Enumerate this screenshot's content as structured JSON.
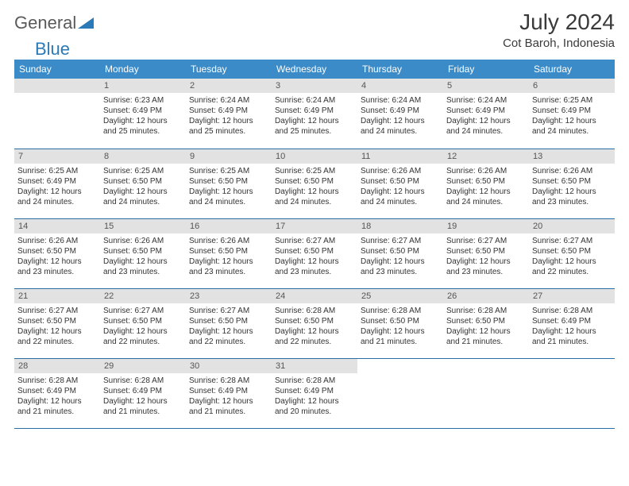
{
  "logo": {
    "text1": "General",
    "text2": "Blue"
  },
  "title": "July 2024",
  "location": "Cot Baroh, Indonesia",
  "colors": {
    "header_bg": "#3b8bc8",
    "header_text": "#ffffff",
    "daynum_bg": "#e2e2e2",
    "border": "#2a6fa5",
    "logo_gray": "#5a5a5a",
    "logo_blue": "#2a7ab8"
  },
  "day_headers": [
    "Sunday",
    "Monday",
    "Tuesday",
    "Wednesday",
    "Thursday",
    "Friday",
    "Saturday"
  ],
  "weeks": [
    [
      null,
      {
        "n": "1",
        "sr": "Sunrise: 6:23 AM",
        "ss": "Sunset: 6:49 PM",
        "d1": "Daylight: 12 hours",
        "d2": "and 25 minutes."
      },
      {
        "n": "2",
        "sr": "Sunrise: 6:24 AM",
        "ss": "Sunset: 6:49 PM",
        "d1": "Daylight: 12 hours",
        "d2": "and 25 minutes."
      },
      {
        "n": "3",
        "sr": "Sunrise: 6:24 AM",
        "ss": "Sunset: 6:49 PM",
        "d1": "Daylight: 12 hours",
        "d2": "and 25 minutes."
      },
      {
        "n": "4",
        "sr": "Sunrise: 6:24 AM",
        "ss": "Sunset: 6:49 PM",
        "d1": "Daylight: 12 hours",
        "d2": "and 24 minutes."
      },
      {
        "n": "5",
        "sr": "Sunrise: 6:24 AM",
        "ss": "Sunset: 6:49 PM",
        "d1": "Daylight: 12 hours",
        "d2": "and 24 minutes."
      },
      {
        "n": "6",
        "sr": "Sunrise: 6:25 AM",
        "ss": "Sunset: 6:49 PM",
        "d1": "Daylight: 12 hours",
        "d2": "and 24 minutes."
      }
    ],
    [
      {
        "n": "7",
        "sr": "Sunrise: 6:25 AM",
        "ss": "Sunset: 6:49 PM",
        "d1": "Daylight: 12 hours",
        "d2": "and 24 minutes."
      },
      {
        "n": "8",
        "sr": "Sunrise: 6:25 AM",
        "ss": "Sunset: 6:50 PM",
        "d1": "Daylight: 12 hours",
        "d2": "and 24 minutes."
      },
      {
        "n": "9",
        "sr": "Sunrise: 6:25 AM",
        "ss": "Sunset: 6:50 PM",
        "d1": "Daylight: 12 hours",
        "d2": "and 24 minutes."
      },
      {
        "n": "10",
        "sr": "Sunrise: 6:25 AM",
        "ss": "Sunset: 6:50 PM",
        "d1": "Daylight: 12 hours",
        "d2": "and 24 minutes."
      },
      {
        "n": "11",
        "sr": "Sunrise: 6:26 AM",
        "ss": "Sunset: 6:50 PM",
        "d1": "Daylight: 12 hours",
        "d2": "and 24 minutes."
      },
      {
        "n": "12",
        "sr": "Sunrise: 6:26 AM",
        "ss": "Sunset: 6:50 PM",
        "d1": "Daylight: 12 hours",
        "d2": "and 24 minutes."
      },
      {
        "n": "13",
        "sr": "Sunrise: 6:26 AM",
        "ss": "Sunset: 6:50 PM",
        "d1": "Daylight: 12 hours",
        "d2": "and 23 minutes."
      }
    ],
    [
      {
        "n": "14",
        "sr": "Sunrise: 6:26 AM",
        "ss": "Sunset: 6:50 PM",
        "d1": "Daylight: 12 hours",
        "d2": "and 23 minutes."
      },
      {
        "n": "15",
        "sr": "Sunrise: 6:26 AM",
        "ss": "Sunset: 6:50 PM",
        "d1": "Daylight: 12 hours",
        "d2": "and 23 minutes."
      },
      {
        "n": "16",
        "sr": "Sunrise: 6:26 AM",
        "ss": "Sunset: 6:50 PM",
        "d1": "Daylight: 12 hours",
        "d2": "and 23 minutes."
      },
      {
        "n": "17",
        "sr": "Sunrise: 6:27 AM",
        "ss": "Sunset: 6:50 PM",
        "d1": "Daylight: 12 hours",
        "d2": "and 23 minutes."
      },
      {
        "n": "18",
        "sr": "Sunrise: 6:27 AM",
        "ss": "Sunset: 6:50 PM",
        "d1": "Daylight: 12 hours",
        "d2": "and 23 minutes."
      },
      {
        "n": "19",
        "sr": "Sunrise: 6:27 AM",
        "ss": "Sunset: 6:50 PM",
        "d1": "Daylight: 12 hours",
        "d2": "and 23 minutes."
      },
      {
        "n": "20",
        "sr": "Sunrise: 6:27 AM",
        "ss": "Sunset: 6:50 PM",
        "d1": "Daylight: 12 hours",
        "d2": "and 22 minutes."
      }
    ],
    [
      {
        "n": "21",
        "sr": "Sunrise: 6:27 AM",
        "ss": "Sunset: 6:50 PM",
        "d1": "Daylight: 12 hours",
        "d2": "and 22 minutes."
      },
      {
        "n": "22",
        "sr": "Sunrise: 6:27 AM",
        "ss": "Sunset: 6:50 PM",
        "d1": "Daylight: 12 hours",
        "d2": "and 22 minutes."
      },
      {
        "n": "23",
        "sr": "Sunrise: 6:27 AM",
        "ss": "Sunset: 6:50 PM",
        "d1": "Daylight: 12 hours",
        "d2": "and 22 minutes."
      },
      {
        "n": "24",
        "sr": "Sunrise: 6:28 AM",
        "ss": "Sunset: 6:50 PM",
        "d1": "Daylight: 12 hours",
        "d2": "and 22 minutes."
      },
      {
        "n": "25",
        "sr": "Sunrise: 6:28 AM",
        "ss": "Sunset: 6:50 PM",
        "d1": "Daylight: 12 hours",
        "d2": "and 21 minutes."
      },
      {
        "n": "26",
        "sr": "Sunrise: 6:28 AM",
        "ss": "Sunset: 6:50 PM",
        "d1": "Daylight: 12 hours",
        "d2": "and 21 minutes."
      },
      {
        "n": "27",
        "sr": "Sunrise: 6:28 AM",
        "ss": "Sunset: 6:49 PM",
        "d1": "Daylight: 12 hours",
        "d2": "and 21 minutes."
      }
    ],
    [
      {
        "n": "28",
        "sr": "Sunrise: 6:28 AM",
        "ss": "Sunset: 6:49 PM",
        "d1": "Daylight: 12 hours",
        "d2": "and 21 minutes."
      },
      {
        "n": "29",
        "sr": "Sunrise: 6:28 AM",
        "ss": "Sunset: 6:49 PM",
        "d1": "Daylight: 12 hours",
        "d2": "and 21 minutes."
      },
      {
        "n": "30",
        "sr": "Sunrise: 6:28 AM",
        "ss": "Sunset: 6:49 PM",
        "d1": "Daylight: 12 hours",
        "d2": "and 21 minutes."
      },
      {
        "n": "31",
        "sr": "Sunrise: 6:28 AM",
        "ss": "Sunset: 6:49 PM",
        "d1": "Daylight: 12 hours",
        "d2": "and 20 minutes."
      },
      null,
      null,
      null
    ]
  ]
}
